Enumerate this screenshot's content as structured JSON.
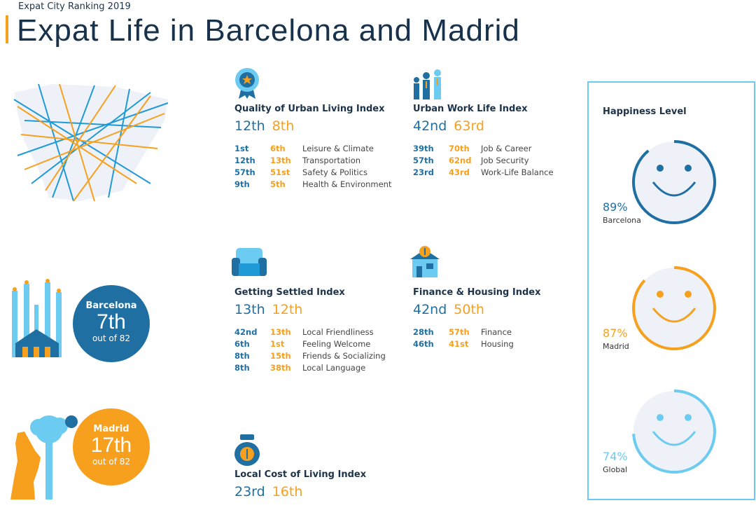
{
  "header": {
    "subtitle": "Expat City Ranking 2019",
    "title": "Expat Life in Barcelona and Madrid"
  },
  "cities": [
    {
      "name": "Barcelona",
      "rank": "7th",
      "total": "out of 82",
      "color": "#1f6fa3"
    },
    {
      "name": "Madrid",
      "rank": "17th",
      "total": "out of 82",
      "color": "#f7a01e"
    }
  ],
  "indices": [
    {
      "title": "Quality of Urban Living Index",
      "barcelona": "12th",
      "madrid": "8th",
      "rows": [
        [
          "1st",
          "6th",
          "Leisure & Climate"
        ],
        [
          "12th",
          "13th",
          "Transportation"
        ],
        [
          "57th",
          "51st",
          "Safety & Politics"
        ],
        [
          "9th",
          "5th",
          "Health & Environment"
        ]
      ]
    },
    {
      "title": "Urban Work Life Index",
      "barcelona": "42nd",
      "madrid": "63rd",
      "rows": [
        [
          "39th",
          "70th",
          "Job & Career"
        ],
        [
          "57th",
          "62nd",
          "Job Security"
        ],
        [
          "23rd",
          "43rd",
          "Work-Life Balance"
        ]
      ]
    },
    {
      "title": "Getting Settled Index",
      "barcelona": "13th",
      "madrid": "12th",
      "rows": [
        [
          "42nd",
          "13th",
          "Local Friendliness"
        ],
        [
          "6th",
          "1st",
          "Feeling Welcome"
        ],
        [
          "8th",
          "15th",
          "Friends & Socializing"
        ],
        [
          "8th",
          "38th",
          "Local Language"
        ]
      ]
    },
    {
      "title": "Finance & Housing Index",
      "barcelona": "42nd",
      "madrid": "50th",
      "rows": [
        [
          "28th",
          "57th",
          "Finance"
        ],
        [
          "46th",
          "41st",
          "Housing"
        ]
      ]
    },
    {
      "title": "Local Cost of Living Index",
      "barcelona": "23rd",
      "madrid": "16th",
      "rows": []
    }
  ],
  "happiness": {
    "title": "Happiness Level",
    "items": [
      {
        "label": "Barcelona",
        "percent_text": "89%",
        "value": 89,
        "color": "#1f6fa3"
      },
      {
        "label": "Madrid",
        "percent_text": "87%",
        "value": 87,
        "color": "#f7a01e"
      },
      {
        "label": "Global",
        "percent_text": "74%",
        "value": 74,
        "color": "#6ccbf0"
      }
    ]
  }
}
